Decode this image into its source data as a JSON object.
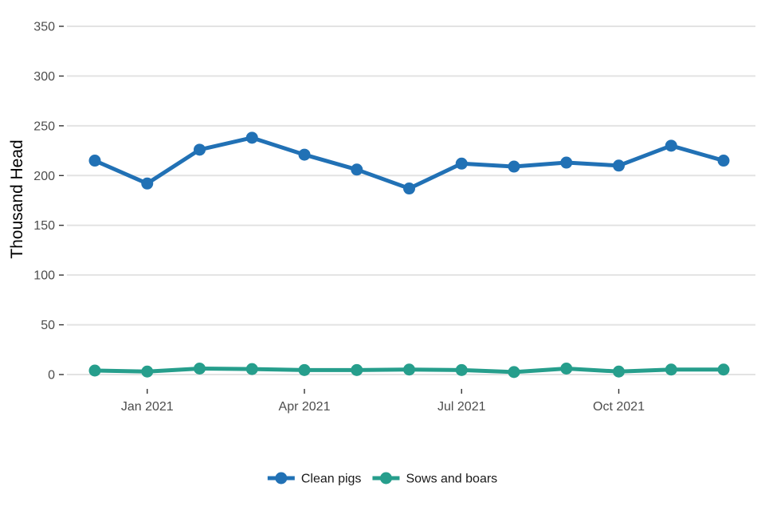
{
  "chart_data": {
    "type": "line",
    "title": "",
    "xlabel": "",
    "ylabel": "Thousand Head",
    "x": [
      "2020-12",
      "2021-01",
      "2021-02",
      "2021-03",
      "2021-04",
      "2021-05",
      "2021-06",
      "2021-07",
      "2021-08",
      "2021-09",
      "2021-10",
      "2021-11",
      "2021-12"
    ],
    "x_ticks": [
      {
        "value": "2021-01",
        "label": "Jan 2021"
      },
      {
        "value": "2021-04",
        "label": "Apr 2021"
      },
      {
        "value": "2021-07",
        "label": "Jul 2021"
      },
      {
        "value": "2021-10",
        "label": "Oct 2021"
      }
    ],
    "y_ticks": [
      0,
      50,
      100,
      150,
      200,
      250,
      300,
      350
    ],
    "ylim": [
      0,
      350
    ],
    "grid": "horizontal",
    "legend_position": "bottom",
    "series": [
      {
        "name": "Clean pigs",
        "color": "#2171b5",
        "values": [
          215,
          192,
          226,
          238,
          221,
          206,
          187,
          212,
          209,
          213,
          210,
          230,
          215
        ]
      },
      {
        "name": "Sows and boars",
        "color": "#269e8c",
        "values": [
          4,
          3,
          6,
          5.5,
          4.5,
          4.5,
          5,
          4.5,
          2.5,
          6,
          3,
          5,
          5
        ]
      }
    ]
  }
}
